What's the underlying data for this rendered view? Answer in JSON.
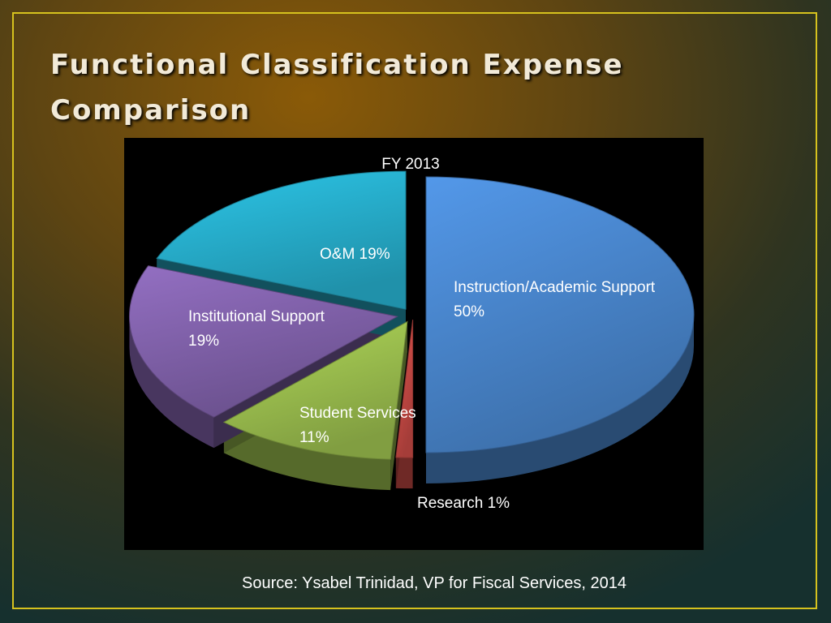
{
  "slide": {
    "title": "Functional Classification Expense Comparison",
    "source": "Source: Ysabel Trinidad, VP for Fiscal Services, 2014"
  },
  "chart_data": {
    "type": "pie",
    "title": "FY 2013",
    "three_d": true,
    "exploded": true,
    "legend": "none",
    "slices": [
      {
        "label": "Instruction/Academic Support",
        "value": 50,
        "color": "#4a88d0"
      },
      {
        "label": "Research",
        "value": 1,
        "color": "#c94a45"
      },
      {
        "label": "Student Services",
        "value": 11,
        "color": "#9dc14f"
      },
      {
        "label": "Institutional Support",
        "value": 19,
        "color": "#8363ad"
      },
      {
        "label": "O&M",
        "value": 19,
        "color": "#27b1cf"
      }
    ],
    "data_labels": [
      {
        "lines": [
          "Instruction/Academic Support",
          "50%"
        ]
      },
      {
        "lines": [
          "Research 1%"
        ]
      },
      {
        "lines": [
          "Student Services",
          "11%"
        ]
      },
      {
        "lines": [
          "Institutional Support",
          "19%"
        ]
      },
      {
        "lines": [
          "O&M 19%"
        ]
      }
    ]
  }
}
